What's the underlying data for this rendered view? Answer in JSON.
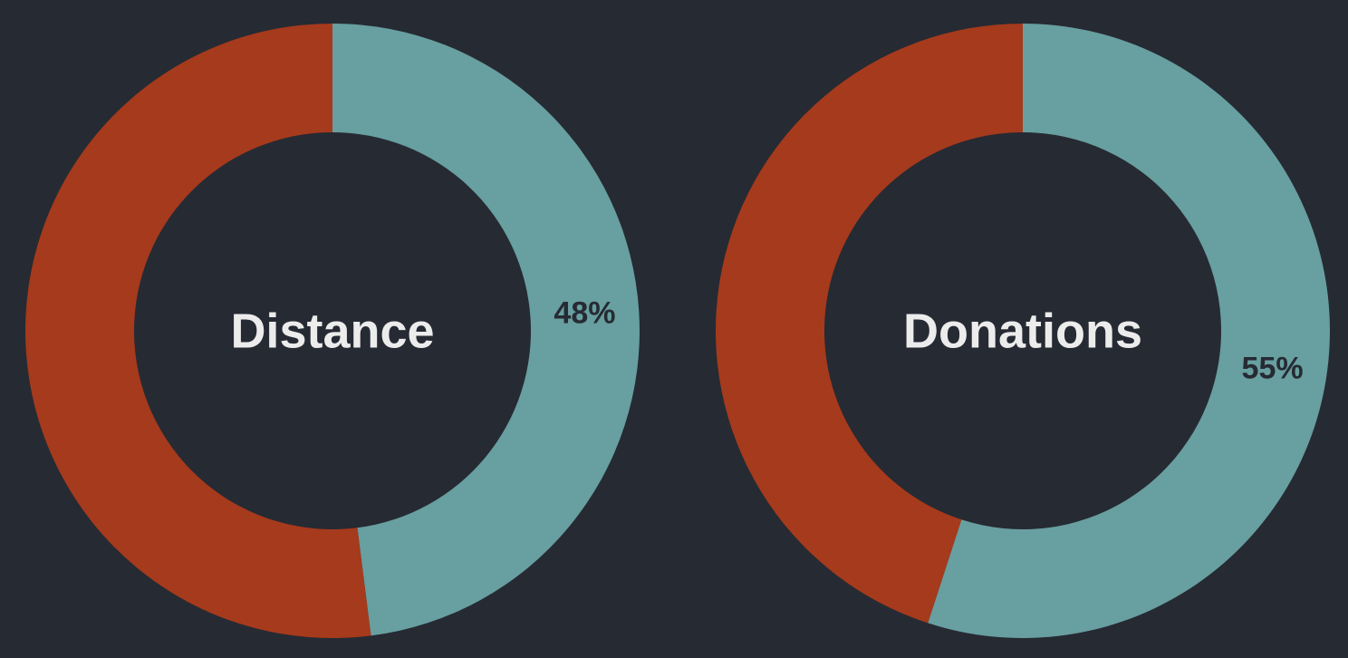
{
  "colors": {
    "background": "#262a33",
    "progress": "#689fa0",
    "remainder": "#a63a1c",
    "center_text": "#ececec",
    "percent_text": "#262a33"
  },
  "chart_data": [
    {
      "type": "pie",
      "variant": "donut",
      "title": "Distance",
      "value_percent": 48,
      "percent_label": "48%",
      "slices": [
        {
          "value": 48,
          "color": "#689fa0"
        },
        {
          "value": 52,
          "color": "#a63a1c"
        }
      ],
      "start": "top",
      "direction": "clockwise"
    },
    {
      "type": "pie",
      "variant": "donut",
      "title": "Donations",
      "value_percent": 55,
      "percent_label": "55%",
      "slices": [
        {
          "value": 55,
          "color": "#689fa0"
        },
        {
          "value": 45,
          "color": "#a63a1c"
        }
      ],
      "start": "top",
      "direction": "clockwise"
    }
  ]
}
